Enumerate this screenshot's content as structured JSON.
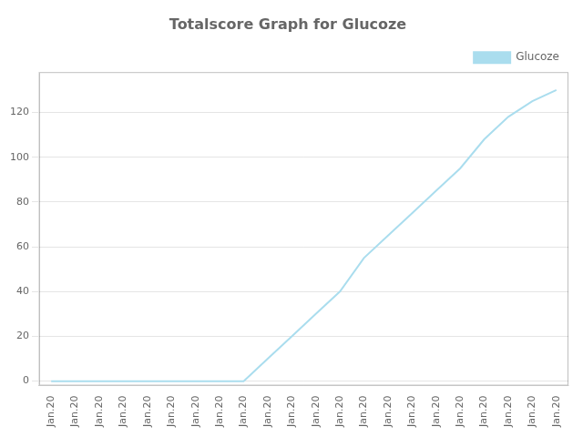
{
  "chart_data": {
    "type": "line",
    "title": "Totalscore Graph for Glucoze",
    "categories": [
      "Jan.20",
      "Jan.20",
      "Jan.20",
      "Jan.20",
      "Jan.20",
      "Jan.20",
      "Jan.20",
      "Jan.20",
      "Jan.20",
      "Jan.20",
      "Jan.20",
      "Jan.20",
      "Jan.20",
      "Jan.20",
      "Jan.20",
      "Jan.20",
      "Jan.20",
      "Jan.20",
      "Jan.20",
      "Jan.20",
      "Jan.20",
      "Jan.20"
    ],
    "series": [
      {
        "name": "Glucoze",
        "color": "#aaddee",
        "values": [
          0,
          0,
          0,
          0,
          0,
          0,
          0,
          0,
          0,
          10,
          20,
          30,
          40,
          55,
          65,
          75,
          85,
          95,
          108,
          118,
          125,
          130
        ]
      }
    ],
    "ylim": [
      -2,
      138
    ],
    "yticks": [
      0,
      20,
      40,
      60,
      80,
      100,
      120
    ],
    "grid": true,
    "legend": "upper right"
  }
}
